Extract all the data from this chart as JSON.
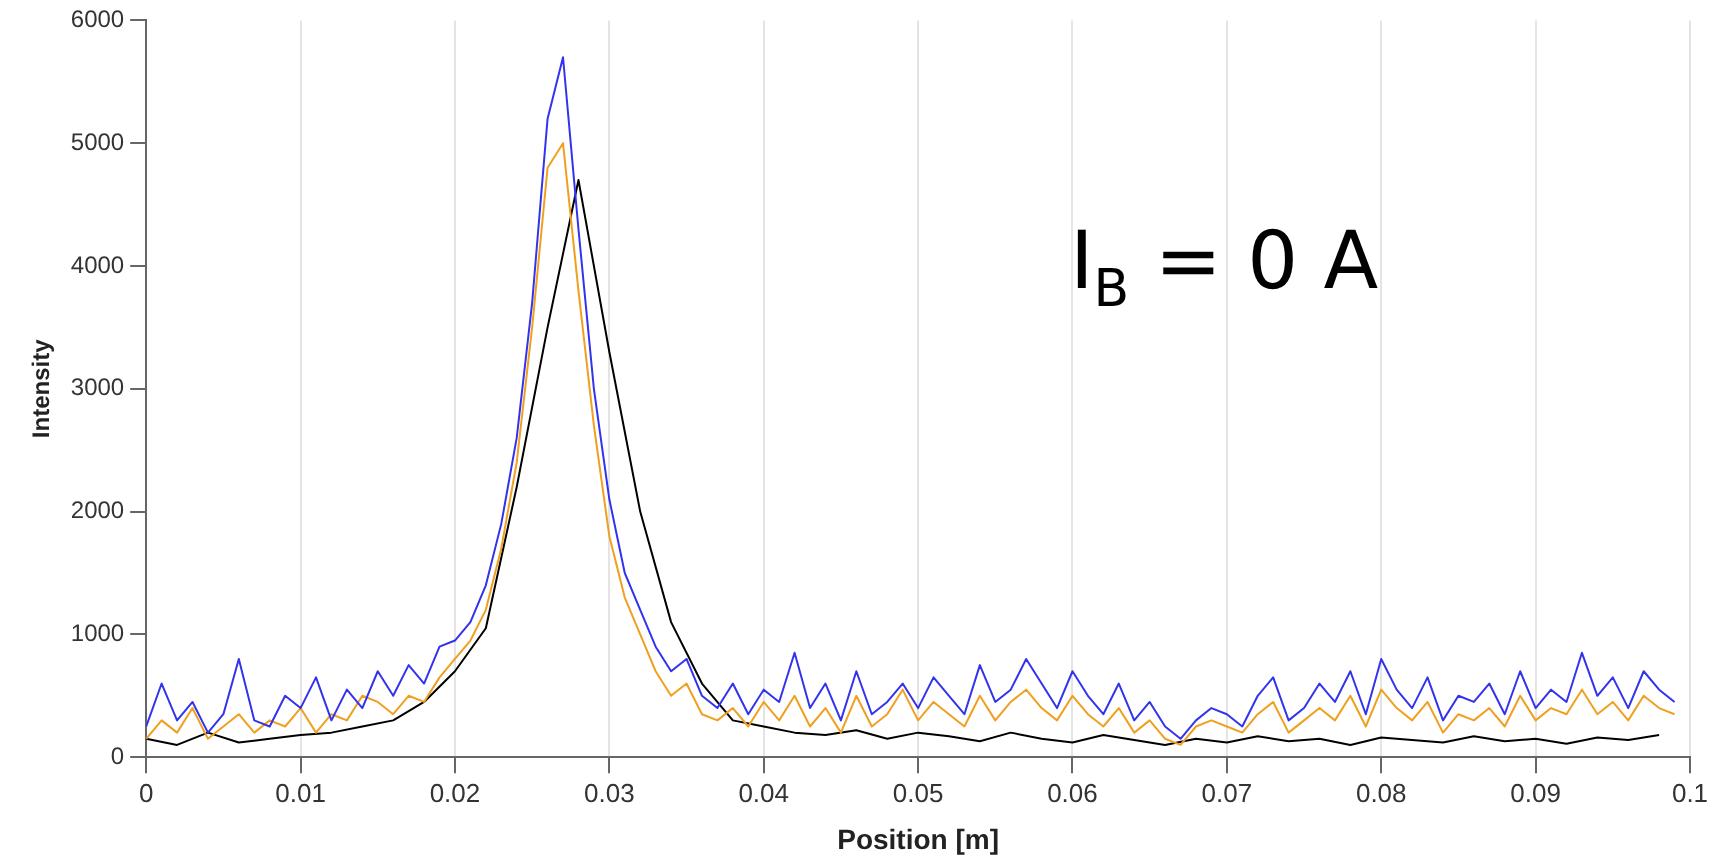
{
  "chart_data": {
    "type": "line",
    "xlabel": "Position [m]",
    "ylabel": "Intensity",
    "annotations": [
      "I$_{B}$ = 0 A"
    ],
    "xlim": [
      0,
      0.1
    ],
    "xticks": [
      0,
      0.01,
      0.02,
      0.03,
      0.04,
      0.05,
      0.06,
      0.07,
      0.08,
      0.09,
      0.1
    ],
    "ylim": [
      0,
      6000
    ],
    "yticks": [
      0,
      1000,
      2000,
      3000,
      4000,
      5000,
      6000
    ],
    "grid": "x",
    "marker": "none",
    "line_style": "solid",
    "x": [
      0,
      0.001,
      0.002,
      0.003,
      0.004,
      0.005,
      0.006,
      0.007,
      0.008,
      0.009,
      0.01,
      0.011,
      0.012,
      0.013,
      0.014,
      0.015,
      0.016,
      0.017,
      0.018,
      0.019,
      0.02,
      0.021,
      0.022,
      0.023,
      0.024,
      0.025,
      0.026,
      0.027,
      0.028,
      0.029,
      0.03,
      0.031,
      0.032,
      0.033,
      0.034,
      0.035,
      0.036,
      0.037,
      0.038,
      0.039,
      0.04,
      0.041,
      0.042,
      0.043,
      0.044,
      0.045,
      0.046,
      0.047,
      0.048,
      0.049,
      0.05,
      0.051,
      0.052,
      0.053,
      0.054,
      0.055,
      0.056,
      0.057,
      0.058,
      0.059,
      0.06,
      0.061,
      0.062,
      0.063,
      0.064,
      0.065,
      0.066,
      0.067,
      0.068,
      0.069,
      0.07,
      0.071,
      0.072,
      0.073,
      0.074,
      0.075,
      0.076,
      0.077,
      0.078,
      0.079,
      0.08,
      0.081,
      0.082,
      0.083,
      0.084,
      0.085,
      0.086,
      0.087,
      0.088,
      0.089,
      0.09,
      0.091,
      0.092,
      0.093,
      0.094,
      0.095,
      0.096,
      0.097,
      0.098,
      0.099
    ],
    "series": [
      {
        "color": "#3333ee",
        "values": [
          250,
          600,
          300,
          450,
          200,
          350,
          800,
          300,
          250,
          500,
          400,
          650,
          300,
          550,
          400,
          700,
          500,
          750,
          600,
          900,
          950,
          1100,
          1400,
          1900,
          2600,
          3700,
          5200,
          5700,
          4300,
          3000,
          2100,
          1500,
          1200,
          900,
          700,
          800,
          500,
          400,
          600,
          350,
          550,
          450,
          850,
          400,
          600,
          300,
          700,
          350,
          450,
          600,
          400,
          650,
          500,
          350,
          750,
          450,
          550,
          800,
          600,
          400,
          700,
          500,
          350,
          600,
          300,
          450,
          250,
          150,
          300,
          400,
          350,
          250,
          500,
          650,
          300,
          400,
          600,
          450,
          700,
          350,
          800,
          550,
          400,
          650,
          300,
          500,
          450,
          600,
          350,
          700,
          400,
          550,
          450,
          850,
          500,
          650,
          400,
          700,
          550,
          450
        ]
      },
      {
        "color": "#f0a020",
        "values": [
          150,
          300,
          200,
          400,
          150,
          250,
          350,
          200,
          300,
          250,
          400,
          200,
          350,
          300,
          500,
          450,
          350,
          500,
          450,
          650,
          800,
          950,
          1200,
          1700,
          2400,
          3500,
          4800,
          5000,
          3800,
          2700,
          1800,
          1300,
          1000,
          700,
          500,
          600,
          350,
          300,
          400,
          250,
          450,
          300,
          500,
          250,
          400,
          200,
          500,
          250,
          350,
          550,
          300,
          450,
          350,
          250,
          500,
          300,
          450,
          550,
          400,
          300,
          500,
          350,
          250,
          400,
          200,
          300,
          150,
          100,
          250,
          300,
          250,
          200,
          350,
          450,
          200,
          300,
          400,
          300,
          500,
          250,
          550,
          400,
          300,
          450,
          200,
          350,
          300,
          400,
          250,
          500,
          300,
          400,
          350,
          550,
          350,
          450,
          300,
          500,
          400,
          350
        ]
      },
      {
        "color": "#000000",
        "x": [
          0,
          0.002,
          0.004,
          0.006,
          0.008,
          0.01,
          0.012,
          0.014,
          0.016,
          0.018,
          0.02,
          0.022,
          0.024,
          0.026,
          0.028,
          0.03,
          0.032,
          0.034,
          0.036,
          0.038,
          0.04,
          0.042,
          0.044,
          0.046,
          0.048,
          0.05,
          0.052,
          0.054,
          0.056,
          0.058,
          0.06,
          0.062,
          0.064,
          0.066,
          0.068,
          0.07,
          0.072,
          0.074,
          0.076,
          0.078,
          0.08,
          0.082,
          0.084,
          0.086,
          0.088,
          0.09,
          0.092,
          0.094,
          0.096,
          0.098
        ],
        "values": [
          150,
          100,
          200,
          120,
          150,
          180,
          200,
          250,
          300,
          450,
          700,
          1050,
          2200,
          3500,
          4700,
          3300,
          2000,
          1100,
          600,
          300,
          250,
          200,
          180,
          220,
          150,
          200,
          170,
          130,
          200,
          150,
          120,
          180,
          140,
          100,
          150,
          120,
          170,
          130,
          150,
          100,
          160,
          140,
          120,
          170,
          130,
          150,
          110,
          160,
          140,
          180
        ]
      }
    ]
  }
}
